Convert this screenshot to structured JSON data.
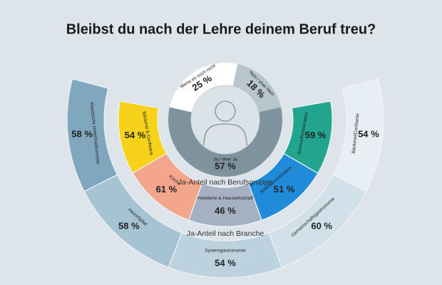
{
  "chart_data": [
    {
      "type": "pie",
      "title": "Bleibst du nach der Lehre deinem Beruf treu?",
      "categories": [
        "Weiss es noch nicht",
        "Nein / eher Nein",
        "Ja / eher Ja"
      ],
      "values": [
        25,
        18,
        57
      ],
      "value_labels": [
        "25 %",
        "18 %",
        "57 %"
      ],
      "colors": [
        "#ffffff",
        "#b7c5cc",
        "#7e939d"
      ]
    },
    {
      "type": "donut",
      "title": "Ja-Anteil nach Berufsgruppe",
      "categories": [
        "Bäckerei & Confiserie",
        "Küche",
        "Hotellerie & Hauswirtschaft",
        "Hoteladministration",
        "Service/Restauration"
      ],
      "values": [
        54,
        61,
        46,
        51,
        59
      ],
      "value_labels": [
        "54 %",
        "61 %",
        "46 %",
        "51 %",
        "59 %"
      ],
      "colors": [
        "#f6d31a",
        "#f3a68b",
        "#a5b1c2",
        "#1f8bd9",
        "#21a58e"
      ]
    },
    {
      "type": "donut",
      "title": "Ja-Anteil nach Branche",
      "categories": [
        "Klassische Hotel/Gastronomie",
        "Heim/Spital",
        "Systemgastronomie",
        "Gemeinschaftsgastronomie",
        "Bäckerei/Confiserie"
      ],
      "values": [
        58,
        58,
        54,
        60,
        54
      ],
      "value_labels": [
        "58 %",
        "58 %",
        "54 %",
        "60 %",
        "54 %"
      ],
      "colors": [
        "#80a7be",
        "#a6c3d3",
        "#bcd2de",
        "#d2e1e9",
        "#e7eff4"
      ]
    }
  ]
}
